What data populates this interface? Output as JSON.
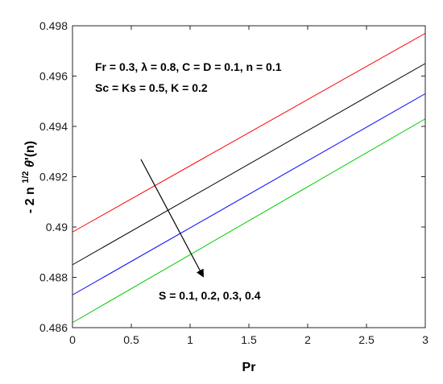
{
  "chart_data": {
    "type": "line",
    "xlabel": "Pr",
    "ylabel": {
      "prefix": "- 2 n",
      "superscript": "1/2",
      "symbol": "θ",
      "suffix": "'(n)"
    },
    "xlim": [
      0,
      3
    ],
    "ylim": [
      0.486,
      0.498
    ],
    "xticks": [
      0,
      0.5,
      1,
      1.5,
      2,
      2.5,
      3
    ],
    "xtick_labels": [
      "0",
      "0.5",
      "1",
      "1.5",
      "2",
      "2.5",
      "3"
    ],
    "yticks": [
      0.486,
      0.488,
      0.49,
      0.492,
      0.494,
      0.496,
      0.498
    ],
    "ytick_labels": [
      "0.486",
      "0.488",
      "0.49",
      "0.492",
      "0.494",
      "0.496",
      "0.498"
    ],
    "grid": false,
    "series": [
      {
        "color": "#ff0000",
        "x": [
          0,
          3
        ],
        "y": [
          0.4898,
          0.4977
        ]
      },
      {
        "color": "#000000",
        "x": [
          0,
          3
        ],
        "y": [
          0.4885,
          0.4965
        ]
      },
      {
        "color": "#0000ff",
        "x": [
          0,
          3
        ],
        "y": [
          0.4873,
          0.4953
        ]
      },
      {
        "color": "#00cc00",
        "x": [
          0,
          3
        ],
        "y": [
          0.4862,
          0.4943
        ]
      }
    ],
    "annotations": {
      "params_line1": "Fr = 0.3, λ = 0.8, C = D = 0.1, n = 0.1",
      "params_line2": "Sc = Ks = 0.5, K = 0.2",
      "arrow_label": "S = 0.1, 0.2, 0.3, 0.4"
    }
  }
}
